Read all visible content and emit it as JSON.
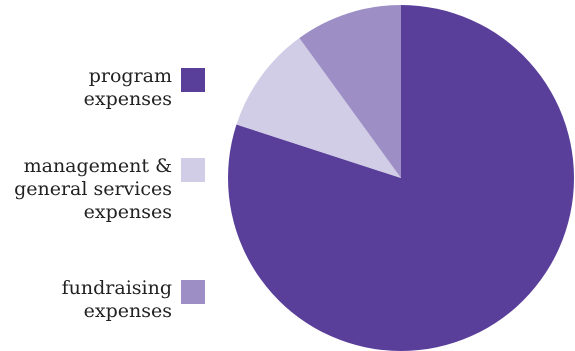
{
  "chart_data": {
    "type": "pie",
    "title": "",
    "legend_position": "left",
    "start": "top",
    "direction": "clockwise",
    "slices": [
      {
        "label": "program\nexpenses",
        "value": 80,
        "color": "#5a3f9a"
      },
      {
        "label": "management &\ngeneral services\nexpenses",
        "value": 10,
        "color": "#d2cde6"
      },
      {
        "label": "fundraising\nexpenses",
        "value": 10,
        "color": "#9d8fc6"
      }
    ]
  }
}
